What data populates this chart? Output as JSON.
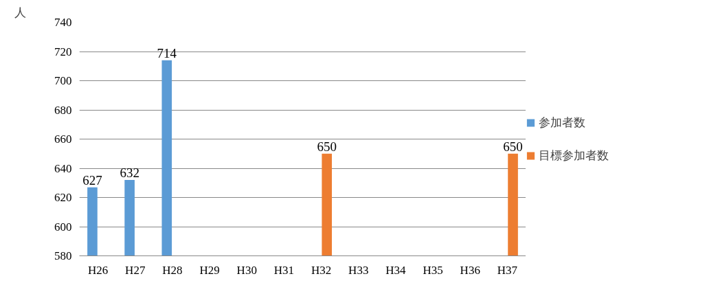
{
  "chart_data": {
    "type": "bar",
    "ylabel": "人",
    "categories": [
      "H26",
      "H27",
      "H28",
      "H29",
      "H30",
      "H31",
      "H32",
      "H33",
      "H34",
      "H35",
      "H36",
      "H37"
    ],
    "series": [
      {
        "name": "参加者数",
        "color": "#5b9bd5",
        "values": [
          627,
          632,
          714,
          null,
          null,
          null,
          null,
          null,
          null,
          null,
          null,
          null
        ]
      },
      {
        "name": "目標参加者数",
        "color": "#ed7d31",
        "values": [
          null,
          null,
          null,
          null,
          null,
          null,
          650,
          null,
          null,
          null,
          null,
          650
        ]
      }
    ],
    "ylim": [
      580,
      740
    ],
    "yticks": [
      580,
      600,
      620,
      640,
      660,
      680,
      700,
      720,
      740
    ],
    "grid": "y",
    "legend": "right",
    "data_labels": true
  }
}
